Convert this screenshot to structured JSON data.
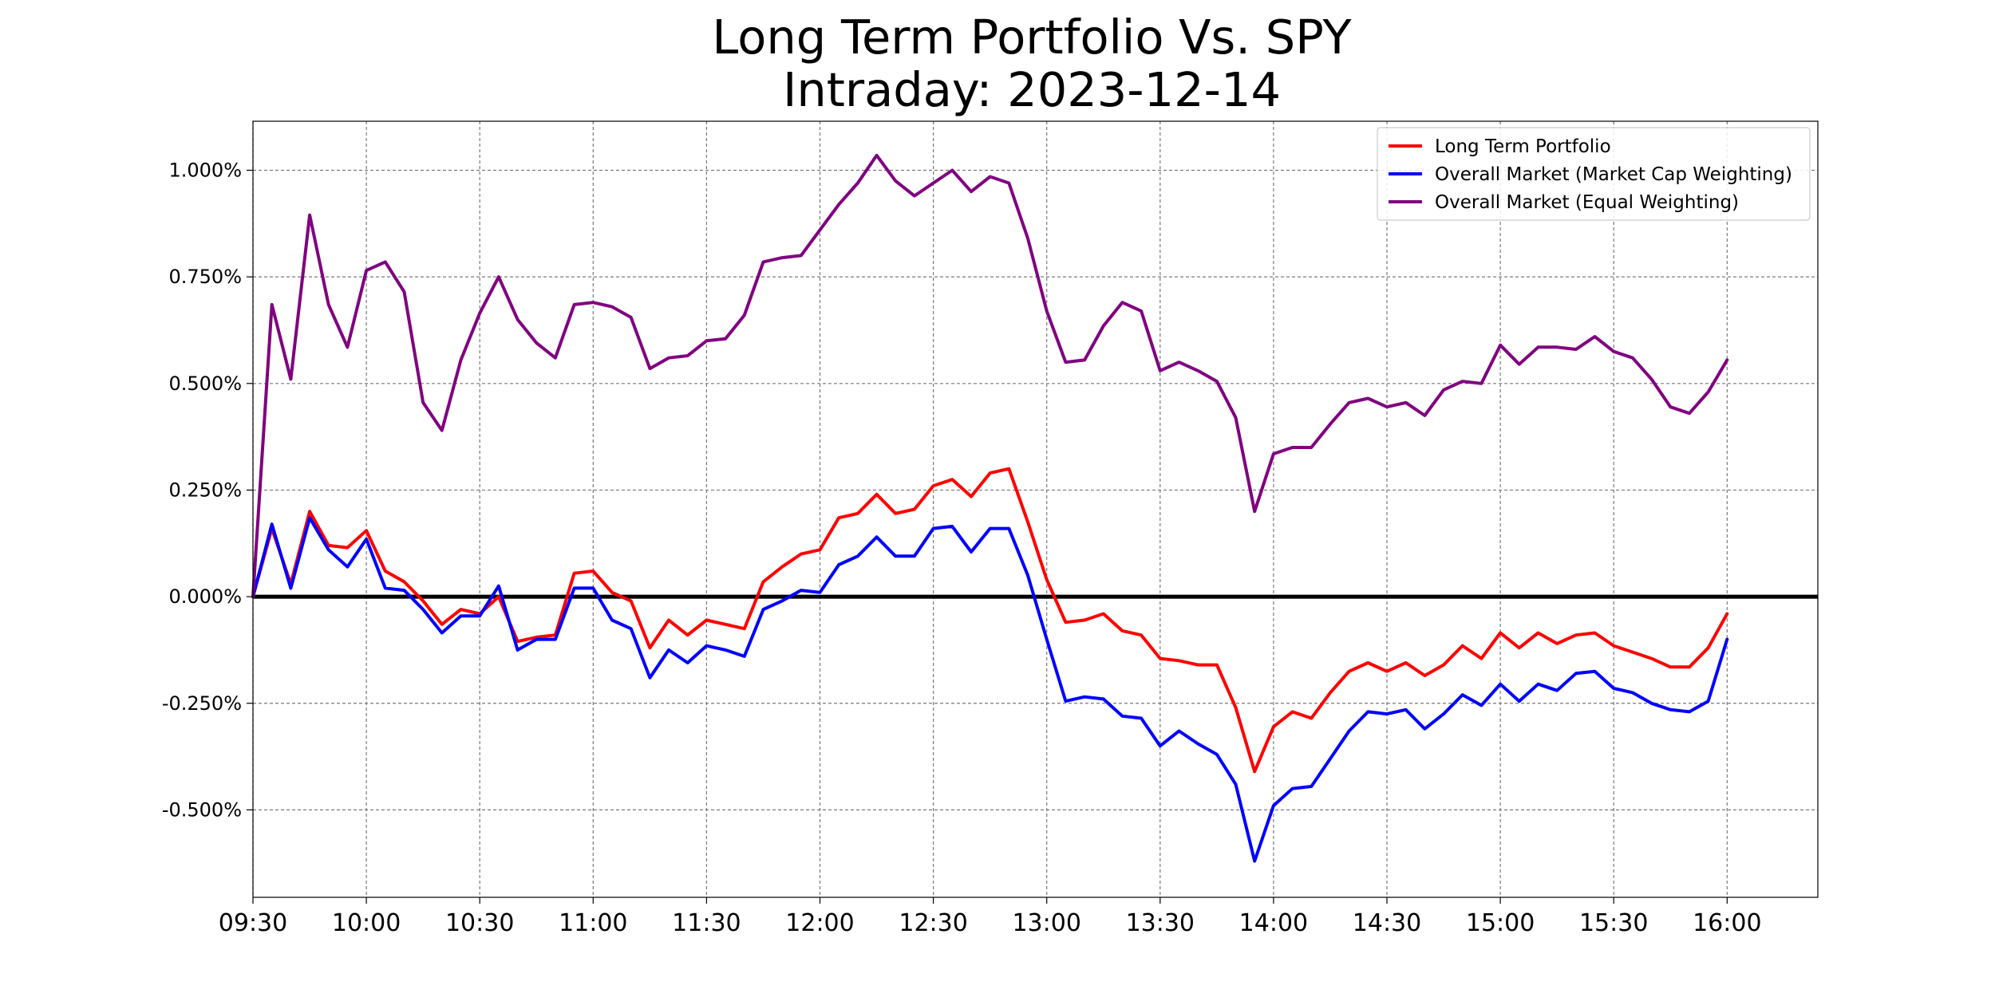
{
  "chart_data": {
    "type": "line",
    "title": "Long Term Portfolio Vs. SPY",
    "subtitle": "Intraday: 2023-12-14",
    "xlabel": "",
    "ylabel": "",
    "x_ticks": [
      "09:30",
      "10:00",
      "10:30",
      "11:00",
      "11:30",
      "12:00",
      "12:30",
      "13:00",
      "13:30",
      "14:00",
      "14:30",
      "15:00",
      "15:30",
      "16:00"
    ],
    "y_ticks": [
      "1.000%",
      "0.750%",
      "0.500%",
      "0.250%",
      "0.000%",
      "-0.250%",
      "-0.500%"
    ],
    "y_tick_values": [
      1.0,
      0.75,
      0.5,
      0.25,
      0.0,
      -0.25,
      -0.5
    ],
    "xlim_minutes": [
      570,
      984
    ],
    "ylim": [
      -0.705,
      1.115
    ],
    "grid": true,
    "legend_position": "top-right",
    "interval_minutes": 5,
    "start_time": "09:30",
    "zero_line": true,
    "series": [
      {
        "name": "Long Term Portfolio",
        "color": "#ff0000",
        "values": [
          0.0,
          0.16,
          0.03,
          0.2,
          0.12,
          0.115,
          0.155,
          0.06,
          0.035,
          -0.01,
          -0.065,
          -0.03,
          -0.04,
          0.0,
          -0.105,
          -0.095,
          -0.09,
          0.055,
          0.06,
          0.01,
          -0.01,
          -0.12,
          -0.055,
          -0.09,
          -0.055,
          -0.065,
          -0.075,
          0.035,
          0.07,
          0.1,
          0.11,
          0.185,
          0.195,
          0.24,
          0.195,
          0.205,
          0.26,
          0.275,
          0.235,
          0.29,
          0.3,
          0.175,
          0.04,
          -0.06,
          -0.055,
          -0.04,
          -0.08,
          -0.09,
          -0.145,
          -0.15,
          -0.16,
          -0.16,
          -0.26,
          -0.41,
          -0.305,
          -0.27,
          -0.285,
          -0.225,
          -0.175,
          -0.155,
          -0.175,
          -0.155,
          -0.185,
          -0.16,
          -0.115,
          -0.145,
          -0.085,
          -0.12,
          -0.085,
          -0.11,
          -0.09,
          -0.085,
          -0.115,
          -0.13,
          -0.145,
          -0.165,
          -0.165,
          -0.12,
          -0.04
        ]
      },
      {
        "name": "Overall Market (Market Cap Weighting)",
        "color": "#0000ff",
        "values": [
          0.0,
          0.17,
          0.02,
          0.185,
          0.11,
          0.07,
          0.135,
          0.02,
          0.015,
          -0.03,
          -0.085,
          -0.045,
          -0.045,
          0.025,
          -0.125,
          -0.1,
          -0.1,
          0.02,
          0.02,
          -0.055,
          -0.075,
          -0.19,
          -0.125,
          -0.155,
          -0.115,
          -0.125,
          -0.14,
          -0.03,
          -0.01,
          0.015,
          0.01,
          0.075,
          0.095,
          0.14,
          0.095,
          0.095,
          0.16,
          0.165,
          0.105,
          0.16,
          0.16,
          0.05,
          -0.1,
          -0.245,
          -0.235,
          -0.24,
          -0.28,
          -0.285,
          -0.35,
          -0.315,
          -0.345,
          -0.37,
          -0.44,
          -0.62,
          -0.49,
          -0.45,
          -0.445,
          -0.38,
          -0.315,
          -0.27,
          -0.275,
          -0.265,
          -0.31,
          -0.275,
          -0.23,
          -0.255,
          -0.205,
          -0.245,
          -0.205,
          -0.22,
          -0.18,
          -0.175,
          -0.215,
          -0.225,
          -0.25,
          -0.265,
          -0.27,
          -0.245,
          -0.1
        ]
      },
      {
        "name": "Overall Market (Equal Weighting)",
        "color": "#800080",
        "values": [
          0.0,
          0.685,
          0.51,
          0.895,
          0.685,
          0.585,
          0.765,
          0.785,
          0.715,
          0.455,
          0.39,
          0.555,
          0.665,
          0.75,
          0.65,
          0.595,
          0.56,
          0.685,
          0.69,
          0.68,
          0.655,
          0.535,
          0.56,
          0.565,
          0.6,
          0.605,
          0.66,
          0.785,
          0.795,
          0.8,
          0.86,
          0.92,
          0.97,
          1.035,
          0.975,
          0.94,
          0.97,
          1.0,
          0.95,
          0.985,
          0.97,
          0.84,
          0.67,
          0.55,
          0.555,
          0.635,
          0.69,
          0.67,
          0.53,
          0.55,
          0.53,
          0.505,
          0.42,
          0.2,
          0.335,
          0.35,
          0.35,
          0.405,
          0.455,
          0.465,
          0.445,
          0.455,
          0.425,
          0.485,
          0.505,
          0.5,
          0.59,
          0.545,
          0.585,
          0.585,
          0.58,
          0.61,
          0.575,
          0.56,
          0.51,
          0.445,
          0.43,
          0.48,
          0.555
        ]
      }
    ]
  }
}
